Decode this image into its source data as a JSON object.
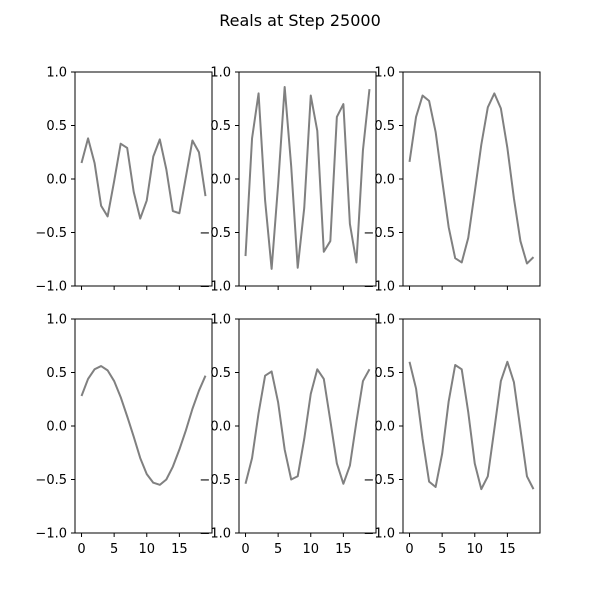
{
  "figure": {
    "title": "Reals at Step 25000"
  },
  "chart_data": [
    {
      "type": "line",
      "x": [
        0,
        1,
        2,
        3,
        4,
        5,
        6,
        7,
        8,
        9,
        10,
        11,
        12,
        13,
        14,
        15,
        16,
        17,
        18,
        19
      ],
      "series": [
        {
          "color": "#808080",
          "values": [
            0.15,
            0.38,
            0.15,
            -0.25,
            -0.35,
            -0.02,
            0.33,
            0.29,
            -0.12,
            -0.37,
            -0.2,
            0.21,
            0.37,
            0.09,
            -0.3,
            -0.32,
            0.02,
            0.36,
            0.25,
            -0.16
          ]
        }
      ],
      "xlim": [
        -1,
        20
      ],
      "ylim": [
        -1,
        1
      ],
      "xticks": [
        0,
        5,
        10,
        15
      ],
      "yticks": [
        -1.0,
        -0.5,
        0.0,
        0.5,
        1.0
      ],
      "xticklabels": [],
      "yticklabels": [
        "−1.0",
        "−0.5",
        "0.0",
        "0.5",
        "1.0"
      ]
    },
    {
      "type": "line",
      "x": [
        0,
        1,
        2,
        3,
        4,
        5,
        6,
        7,
        8,
        9,
        10,
        11,
        12,
        13,
        14,
        15,
        16,
        17,
        18,
        19
      ],
      "series": [
        {
          "color": "#808080",
          "values": [
            -0.72,
            0.38,
            0.8,
            -0.2,
            -0.84,
            -0.05,
            0.86,
            0.12,
            -0.83,
            -0.27,
            0.78,
            0.45,
            -0.68,
            -0.58,
            0.58,
            0.7,
            -0.42,
            -0.78,
            0.27,
            0.84
          ]
        }
      ],
      "xlim": [
        -1,
        20
      ],
      "ylim": [
        -1,
        1
      ],
      "xticks": [
        0,
        5,
        10,
        15
      ],
      "yticks": [
        -1.0,
        -0.5,
        0.0,
        0.5,
        1.0
      ],
      "xticklabels": [],
      "yticklabels": [
        "−1.0",
        "−0.5",
        "0.0",
        "0.5",
        "1.0"
      ]
    },
    {
      "type": "line",
      "x": [
        0,
        1,
        2,
        3,
        4,
        5,
        6,
        7,
        8,
        9,
        10,
        11,
        12,
        13,
        14,
        15,
        16,
        17,
        18,
        19
      ],
      "series": [
        {
          "color": "#808080",
          "values": [
            0.16,
            0.58,
            0.78,
            0.73,
            0.44,
            -0.01,
            -0.45,
            -0.74,
            -0.78,
            -0.55,
            -0.12,
            0.32,
            0.67,
            0.8,
            0.66,
            0.29,
            -0.18,
            -0.58,
            -0.79,
            -0.73
          ]
        }
      ],
      "xlim": [
        -1,
        20
      ],
      "ylim": [
        -1,
        1
      ],
      "xticks": [
        0,
        5,
        10,
        15
      ],
      "yticks": [
        -1.0,
        -0.5,
        0.0,
        0.5,
        1.0
      ],
      "xticklabels": [],
      "yticklabels": [
        "−1.0",
        "−0.5",
        "0.0",
        "0.5",
        "1.0"
      ]
    },
    {
      "type": "line",
      "x": [
        0,
        1,
        2,
        3,
        4,
        5,
        6,
        7,
        8,
        9,
        10,
        11,
        12,
        13,
        14,
        15,
        16,
        17,
        18,
        19
      ],
      "series": [
        {
          "color": "#808080",
          "values": [
            0.28,
            0.44,
            0.53,
            0.56,
            0.52,
            0.42,
            0.27,
            0.09,
            -0.1,
            -0.3,
            -0.45,
            -0.53,
            -0.55,
            -0.5,
            -0.38,
            -0.22,
            -0.04,
            0.16,
            0.33,
            0.47
          ]
        }
      ],
      "xlim": [
        -1,
        20
      ],
      "ylim": [
        -1,
        1
      ],
      "xticks": [
        0,
        5,
        10,
        15
      ],
      "yticks": [
        -1.0,
        -0.5,
        0.0,
        0.5,
        1.0
      ],
      "xticklabels": [
        "0",
        "5",
        "10",
        "15"
      ],
      "yticklabels": [
        "−1.0",
        "−0.5",
        "0.0",
        "0.5",
        "1.0"
      ]
    },
    {
      "type": "line",
      "x": [
        0,
        1,
        2,
        3,
        4,
        5,
        6,
        7,
        8,
        9,
        10,
        11,
        12,
        13,
        14,
        15,
        16,
        17,
        18,
        19
      ],
      "series": [
        {
          "color": "#808080",
          "values": [
            -0.54,
            -0.3,
            0.12,
            0.47,
            0.51,
            0.22,
            -0.22,
            -0.5,
            -0.47,
            -0.12,
            0.3,
            0.53,
            0.44,
            0.05,
            -0.35,
            -0.54,
            -0.37,
            0.04,
            0.42,
            0.53
          ]
        }
      ],
      "xlim": [
        -1,
        20
      ],
      "ylim": [
        -1,
        1
      ],
      "xticks": [
        0,
        5,
        10,
        15
      ],
      "yticks": [
        -1.0,
        -0.5,
        0.0,
        0.5,
        1.0
      ],
      "xticklabels": [
        "0",
        "5",
        "10",
        "15"
      ],
      "yticklabels": [
        "−1.0",
        "−0.5",
        "0.0",
        "0.5",
        "1.0"
      ]
    },
    {
      "type": "line",
      "x": [
        0,
        1,
        2,
        3,
        4,
        5,
        6,
        7,
        8,
        9,
        10,
        11,
        12,
        13,
        14,
        15,
        16,
        17,
        18,
        19
      ],
      "series": [
        {
          "color": "#808080",
          "values": [
            0.6,
            0.35,
            -0.12,
            -0.52,
            -0.57,
            -0.26,
            0.23,
            0.57,
            0.53,
            0.13,
            -0.35,
            -0.59,
            -0.47,
            -0.03,
            0.42,
            0.6,
            0.41,
            -0.03,
            -0.47,
            -0.59
          ]
        }
      ],
      "xlim": [
        -1,
        20
      ],
      "ylim": [
        -1,
        1
      ],
      "xticks": [
        0,
        5,
        10,
        15
      ],
      "yticks": [
        -1.0,
        -0.5,
        0.0,
        0.5,
        1.0
      ],
      "xticklabels": [
        "0",
        "5",
        "10",
        "15"
      ],
      "yticklabels": [
        "−1.0",
        "−0.5",
        "0.0",
        "0.5",
        "1.0"
      ]
    }
  ]
}
